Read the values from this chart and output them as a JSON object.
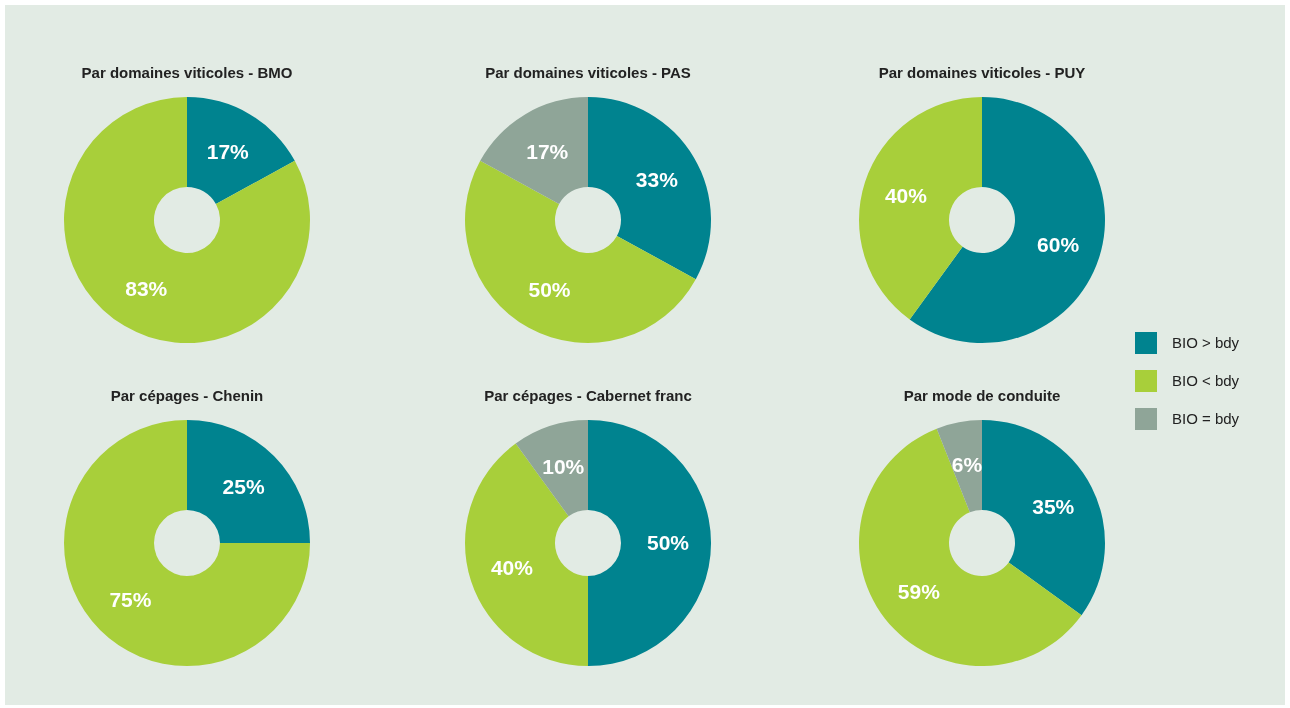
{
  "chart_data": [
    {
      "type": "donut",
      "title": "Par domaines viticoles - BMO",
      "categories": [
        "BIO > bdy",
        "BIO < bdy",
        "BIO = bdy"
      ],
      "values": [
        17,
        83,
        0
      ],
      "colors": [
        "#00838f",
        "#a8cf3a",
        "#8fa598"
      ],
      "value_labels": [
        "17%",
        "83%",
        null
      ],
      "legend": "right"
    },
    {
      "type": "donut",
      "title": "Par domaines viticoles - PAS",
      "categories": [
        null,
        null,
        null
      ],
      "values": [
        33,
        50,
        17
      ],
      "colors": [
        "#00838f",
        "#a8cf3a",
        "#8fa598"
      ],
      "value_labels": [
        "33%",
        "50%",
        "17%"
      ]
    },
    {
      "type": "donut",
      "title": "Par domaines viticoles - PUY",
      "categories": [
        null,
        null,
        null
      ],
      "values": [
        60,
        40,
        0
      ],
      "colors": [
        "#00838f",
        "#a8cf3a",
        "#8fa598"
      ],
      "value_labels": [
        "60%",
        "40%",
        null
      ]
    },
    {
      "type": "donut",
      "title": "Par cépages - Chenin",
      "categories": [
        null,
        null,
        null
      ],
      "values": [
        25,
        75,
        0
      ],
      "colors": [
        "#00838f",
        "#a8cf3a",
        "#8fa598"
      ],
      "value_labels": [
        "25%",
        "75%",
        null
      ]
    },
    {
      "type": "donut",
      "title": "Par cépages - Cabernet franc",
      "categories": [
        null,
        null,
        null
      ],
      "values": [
        50,
        40,
        10
      ],
      "colors": [
        "#00838f",
        "#a8cf3a",
        "#8fa598"
      ],
      "value_labels": [
        "50%",
        "40%",
        "10%"
      ]
    },
    {
      "type": "donut",
      "title": "Par mode de conduite",
      "categories": [
        null,
        null,
        null
      ],
      "values": [
        35,
        59,
        6
      ],
      "colors": [
        "#00838f",
        "#a8cf3a",
        "#8fa598"
      ],
      "value_labels": [
        "35%",
        "59%",
        "6%"
      ]
    }
  ]
}
